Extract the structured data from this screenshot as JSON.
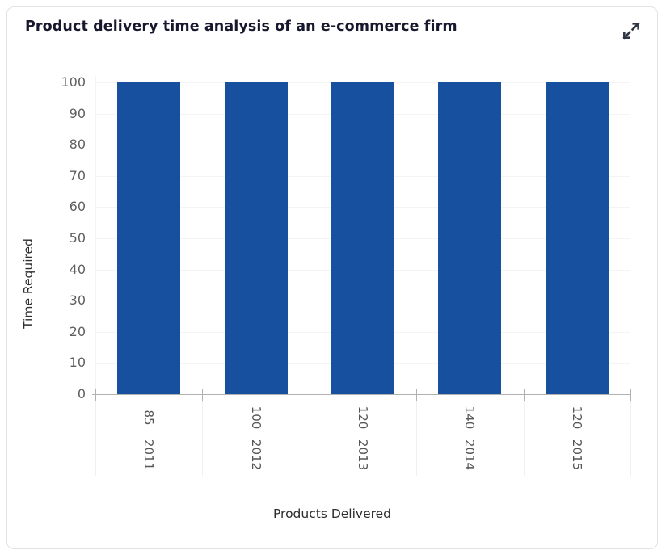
{
  "header": {
    "title": "Product delivery time analysis of an e-commerce firm",
    "expand_icon": "expand-diagonal-arrows"
  },
  "colors": {
    "bar": "#17509e",
    "axis_line": "#b1b1b1",
    "grid_line": "#f4f4f4",
    "tick_label": "#5f5f5f",
    "title_text": "#17172e",
    "axis_title_text": "#2d2d2d",
    "card_border": "#e2e2e2",
    "icon": "#2f3542"
  },
  "chart_data": {
    "type": "bar",
    "title": "Product delivery time analysis of an e-commerce firm",
    "xlabel": "Products Delivered",
    "ylabel": "Time Required",
    "ylim": [
      0,
      100
    ],
    "y_ticks": [
      0,
      10,
      20,
      30,
      40,
      50,
      60,
      70,
      80,
      90,
      100
    ],
    "x_ticks": [
      {
        "label": "85",
        "sublabel": "2011"
      },
      {
        "label": "100",
        "sublabel": "2012"
      },
      {
        "label": "120",
        "sublabel": "2013"
      },
      {
        "label": "140",
        "sublabel": "2014"
      },
      {
        "label": "120",
        "sublabel": "2015"
      }
    ],
    "series": [
      {
        "name": "Time Required",
        "values": [
          100,
          100,
          100,
          100,
          100
        ]
      }
    ],
    "bar_color": "#17509e",
    "grid": "horizontal",
    "legend": "none",
    "x_label_rotation_deg": 90
  }
}
